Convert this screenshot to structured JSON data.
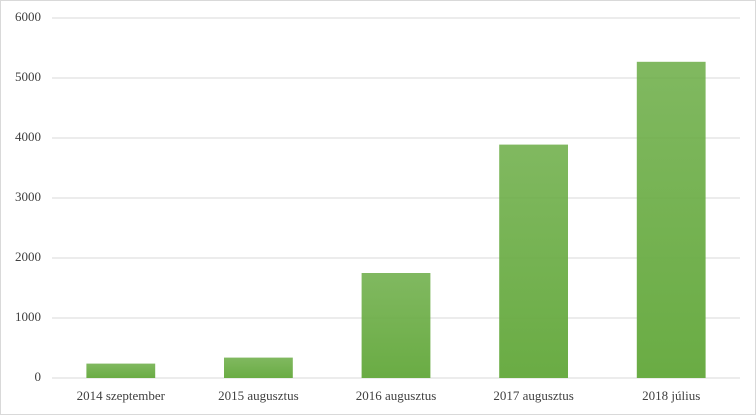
{
  "chart_data": {
    "type": "bar",
    "categories": [
      "2014 szeptember",
      "2015 augusztus",
      "2016 augusztus",
      "2017 augusztus",
      "2018 július"
    ],
    "values": [
      240,
      340,
      1750,
      3890,
      5270
    ],
    "color": "#6aac44",
    "ylim": [
      0,
      6000
    ],
    "yticks": [
      0,
      1000,
      2000,
      3000,
      4000,
      5000,
      6000
    ],
    "grid": true
  }
}
